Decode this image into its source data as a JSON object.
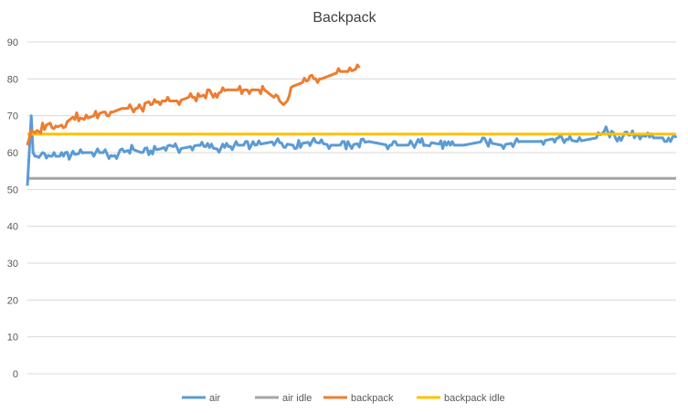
{
  "chart_data": {
    "type": "line",
    "title": "Backpack",
    "xlabel": "",
    "ylabel": "",
    "ylim": [
      0,
      90
    ],
    "yticks": [
      0,
      10,
      20,
      30,
      40,
      50,
      60,
      70,
      80,
      90
    ],
    "grid": true,
    "legend_position": "bottom",
    "x_count": 343,
    "series": [
      {
        "name": "air",
        "color": "#5B9BD5",
        "points": [
          [
            0,
            51
          ],
          [
            2,
            70
          ],
          [
            3,
            60
          ],
          [
            5,
            58
          ],
          [
            8,
            60
          ],
          [
            12,
            59
          ],
          [
            20,
            59
          ],
          [
            30,
            60
          ],
          [
            40,
            60
          ],
          [
            45,
            59
          ],
          [
            50,
            60
          ],
          [
            55,
            61
          ],
          [
            60,
            60
          ],
          [
            70,
            61
          ],
          [
            75,
            62
          ],
          [
            80,
            61
          ],
          [
            90,
            62
          ],
          [
            100,
            61
          ],
          [
            110,
            62
          ],
          [
            120,
            62
          ],
          [
            130,
            63
          ],
          [
            140,
            62
          ],
          [
            150,
            63
          ],
          [
            160,
            62
          ],
          [
            170,
            62
          ],
          [
            180,
            63
          ],
          [
            190,
            62
          ],
          [
            200,
            62
          ],
          [
            210,
            63
          ],
          [
            220,
            62
          ],
          [
            230,
            62
          ],
          [
            240,
            63
          ],
          [
            250,
            62
          ],
          [
            260,
            63
          ],
          [
            270,
            63
          ],
          [
            280,
            64
          ],
          [
            290,
            63
          ],
          [
            300,
            64
          ],
          [
            305,
            66
          ],
          [
            310,
            64
          ],
          [
            320,
            65
          ],
          [
            330,
            64
          ],
          [
            340,
            64
          ],
          [
            342,
            64
          ]
        ]
      },
      {
        "name": "air idle",
        "color": "#A5A5A5",
        "points": [
          [
            0,
            53
          ],
          [
            342,
            53
          ]
        ]
      },
      {
        "name": "backpack",
        "color": "#ED7D31",
        "points": [
          [
            0,
            62
          ],
          [
            2,
            66
          ],
          [
            5,
            65
          ],
          [
            8,
            67
          ],
          [
            12,
            68
          ],
          [
            16,
            67
          ],
          [
            20,
            68
          ],
          [
            25,
            70
          ],
          [
            30,
            69
          ],
          [
            35,
            70
          ],
          [
            40,
            71
          ],
          [
            45,
            71
          ],
          [
            50,
            72
          ],
          [
            55,
            72
          ],
          [
            60,
            72
          ],
          [
            65,
            73
          ],
          [
            70,
            74
          ],
          [
            75,
            74
          ],
          [
            80,
            74
          ],
          [
            85,
            75
          ],
          [
            90,
            75
          ],
          [
            95,
            76
          ],
          [
            100,
            76
          ],
          [
            105,
            77
          ],
          [
            110,
            77
          ],
          [
            115,
            77
          ],
          [
            120,
            77
          ],
          [
            125,
            77
          ],
          [
            130,
            75
          ],
          [
            133,
            74
          ],
          [
            135,
            73
          ],
          [
            137,
            74
          ],
          [
            140,
            78
          ],
          [
            145,
            79
          ],
          [
            150,
            80
          ],
          [
            155,
            80
          ],
          [
            160,
            81
          ],
          [
            165,
            82
          ],
          [
            170,
            82
          ],
          [
            175,
            83
          ]
        ]
      },
      {
        "name": "backpack idle",
        "color": "#FFC000",
        "points": [
          [
            0,
            65
          ],
          [
            342,
            65
          ]
        ]
      }
    ]
  }
}
